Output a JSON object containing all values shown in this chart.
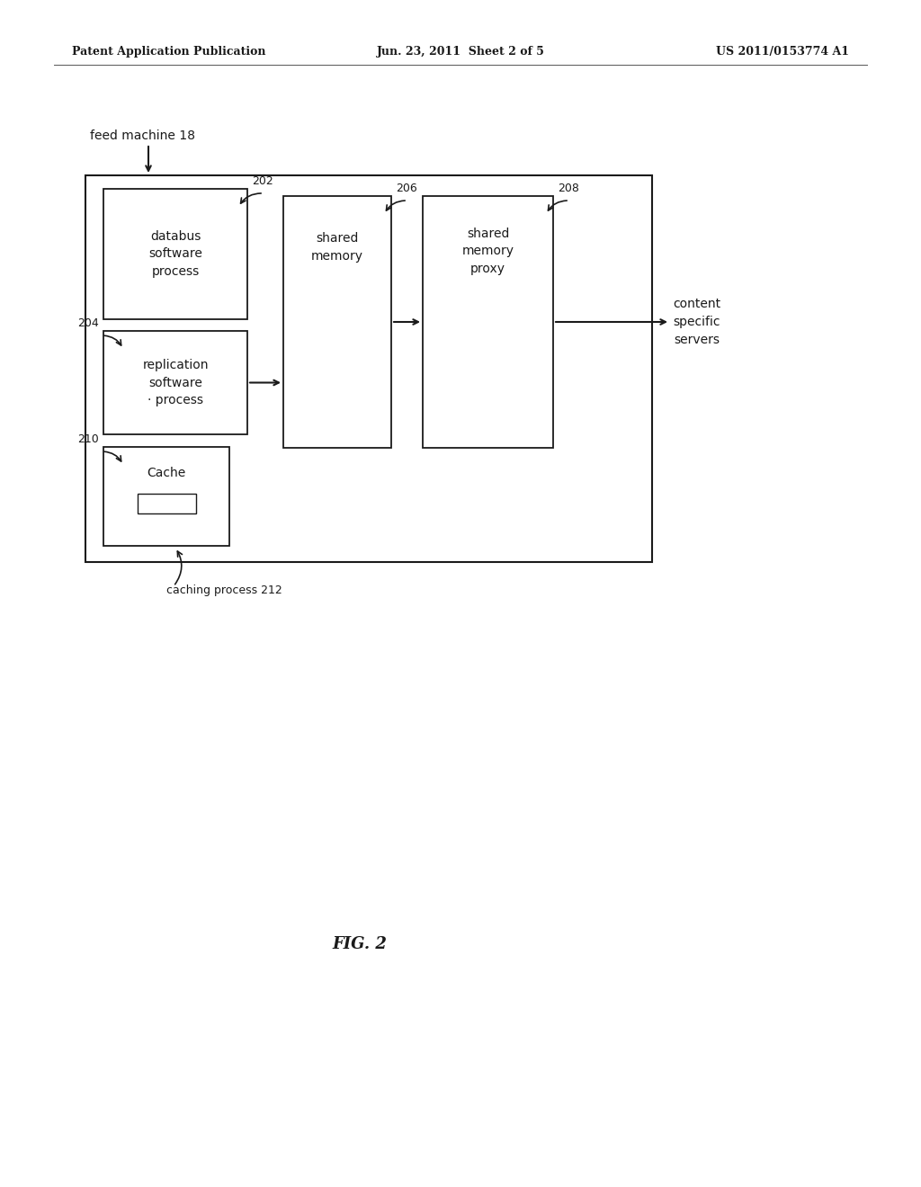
{
  "bg_color": "#ffffff",
  "header_left": "Patent Application Publication",
  "header_mid": "Jun. 23, 2011  Sheet 2 of 5",
  "header_right": "US 2011/0153774 A1",
  "footer_label": "FIG. 2",
  "feed_machine_label": "feed machine 18",
  "caching_process_label": "caching process 212",
  "content_servers_label": "content\nspecific\nservers",
  "label_202": "202",
  "text_202": "databus\nsoftware\nprocess",
  "label_204": "204",
  "text_204": "replication\nsoftware\n· process",
  "label_206": "206",
  "text_206": "shared\nmemory",
  "label_208": "208",
  "text_208": "shared\nmemory\nproxy",
  "label_210": "210",
  "text_210": "Cache",
  "arrow_color": "#1a1a1a",
  "box_color": "#ffffff",
  "box_edge_color": "#1a1a1a",
  "text_color": "#1a1a1a",
  "font_size_main": 10,
  "font_size_label": 9,
  "font_size_header": 9
}
